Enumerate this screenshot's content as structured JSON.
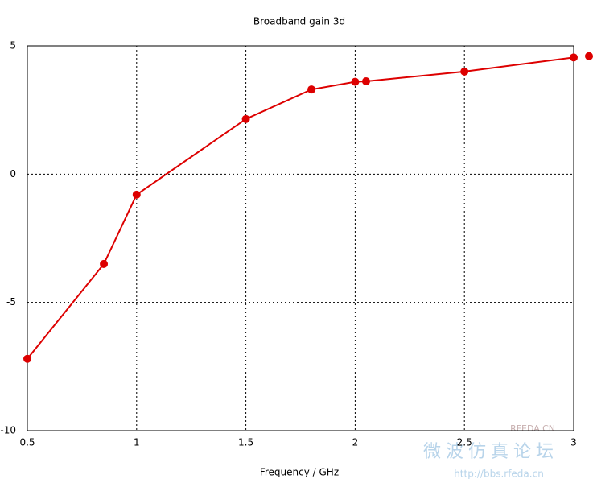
{
  "chart_data": {
    "type": "line",
    "title": "Broadband gain 3d",
    "xlabel": "Frequency / GHz",
    "x": [
      0.5,
      0.85,
      1.0,
      1.5,
      1.8,
      2.0,
      2.05,
      2.5,
      3.0,
      3.07
    ],
    "series": [
      {
        "color": "#dd0000",
        "values": [
          -7.2,
          -3.5,
          -0.8,
          2.15,
          3.3,
          3.6,
          3.62,
          4.0,
          4.55,
          4.6
        ]
      }
    ],
    "xlim": [
      0.5,
      3
    ],
    "ylim": [
      -10,
      5
    ],
    "xticks": [
      0.5,
      1,
      1.5,
      2,
      2.5,
      3
    ],
    "yticks": [
      -10,
      -5,
      0,
      5
    ],
    "grid": true,
    "watermark": [
      "RFEDA.CN",
      "微波仿真论坛",
      "http://bbs.rfeda.cn"
    ]
  }
}
